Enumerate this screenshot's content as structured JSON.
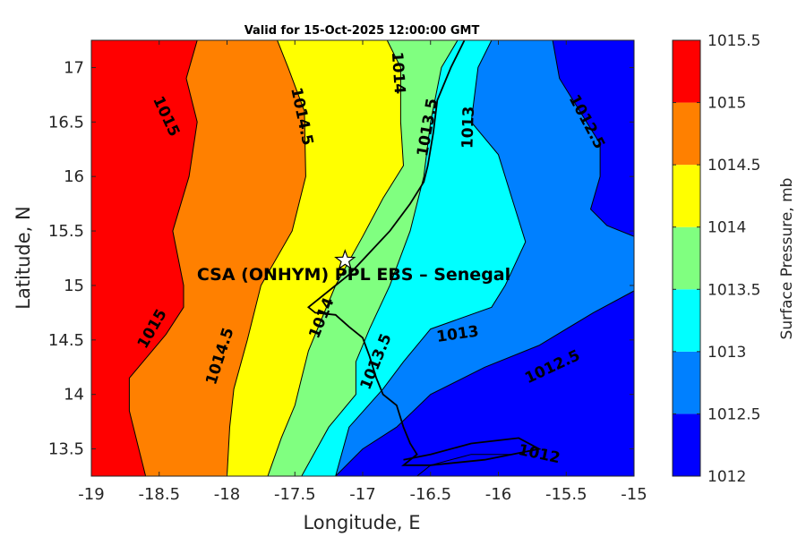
{
  "chart_data": {
    "type": "contour",
    "title": "Valid for 15-Oct-2025 12:00:00 GMT",
    "xlabel": "Longitude, E",
    "ylabel": "Latitude, N",
    "xlim": [
      -19,
      -15
    ],
    "ylim": [
      13.25,
      17.25
    ],
    "xticks": [
      -19,
      -18.5,
      -18,
      -17.5,
      -17,
      -16.5,
      -16,
      -15.5,
      -15
    ],
    "yticks": [
      13.5,
      14,
      14.5,
      15,
      15.5,
      16,
      16.5,
      17
    ],
    "xtick_labels": [
      "-19",
      "-18.5",
      "-18",
      "-17.5",
      "-17",
      "-16.5",
      "-16",
      "-15.5",
      "-15"
    ],
    "ytick_labels": [
      "13.5",
      "14",
      "14.5",
      "15",
      "15.5",
      "16",
      "16.5",
      "17"
    ],
    "levels": [
      1012,
      1012.5,
      1013,
      1013.5,
      1014,
      1014.5,
      1015,
      1015.5
    ],
    "level_labels": [
      "1012",
      "1012.5",
      "1013",
      "1013.5",
      "1014",
      "1014.5",
      "1015",
      "1015.5"
    ],
    "band_colors": [
      "#0000ff",
      "#0080ff",
      "#00ffff",
      "#80ff80",
      "#ffff00",
      "#ff8000",
      "#ff0000"
    ],
    "colorbar_label": "Surface Pressure, mb",
    "isolines": [
      {
        "level": 1015,
        "pts": [
          [
            -18.22,
            17.25
          ],
          [
            -18.3,
            16.9
          ],
          [
            -18.22,
            16.5
          ],
          [
            -18.28,
            16.0
          ],
          [
            -18.4,
            15.5
          ],
          [
            -18.32,
            15.0
          ],
          [
            -18.32,
            14.8
          ],
          [
            -18.45,
            14.55
          ],
          [
            -18.72,
            14.15
          ],
          [
            -18.72,
            13.85
          ],
          [
            -18.65,
            13.5
          ],
          [
            -18.6,
            13.25
          ]
        ]
      },
      {
        "level": 1014.5,
        "pts": [
          [
            -17.63,
            17.25
          ],
          [
            -17.55,
            17.0
          ],
          [
            -17.43,
            16.6
          ],
          [
            -17.42,
            16.0
          ],
          [
            -17.52,
            15.5
          ],
          [
            -17.75,
            15.0
          ],
          [
            -17.85,
            14.5
          ],
          [
            -17.95,
            14.05
          ],
          [
            -17.98,
            13.7
          ],
          [
            -18.0,
            13.25
          ]
        ]
      },
      {
        "level": 1014,
        "pts": [
          [
            -16.82,
            17.25
          ],
          [
            -16.72,
            17.0
          ],
          [
            -16.72,
            16.5
          ],
          [
            -16.7,
            16.1
          ],
          [
            -16.85,
            15.8
          ],
          [
            -17.0,
            15.45
          ],
          [
            -17.2,
            15.0
          ],
          [
            -17.3,
            14.7
          ],
          [
            -17.4,
            14.4
          ],
          [
            -17.45,
            14.15
          ],
          [
            -17.5,
            13.9
          ],
          [
            -17.6,
            13.6
          ],
          [
            -17.7,
            13.25
          ]
        ]
      },
      {
        "level": 1013.5,
        "pts": [
          [
            -16.3,
            17.25
          ],
          [
            -16.42,
            17.0
          ],
          [
            -16.5,
            16.5
          ],
          [
            -16.55,
            16.0
          ],
          [
            -16.65,
            15.5
          ],
          [
            -16.8,
            15.0
          ],
          [
            -16.95,
            14.6
          ],
          [
            -17.05,
            14.3
          ],
          [
            -17.05,
            14.0
          ],
          [
            -17.25,
            13.7
          ],
          [
            -17.45,
            13.25
          ]
        ]
      },
      {
        "level": 1013,
        "pts": [
          [
            -16.05,
            17.25
          ],
          [
            -16.15,
            17.0
          ],
          [
            -16.2,
            16.5
          ],
          [
            -16.0,
            16.2
          ],
          [
            -15.9,
            15.8
          ],
          [
            -15.8,
            15.4
          ],
          [
            -15.95,
            15.0
          ],
          [
            -16.05,
            14.8
          ],
          [
            -16.5,
            14.6
          ],
          [
            -16.7,
            14.3
          ],
          [
            -16.85,
            14.05
          ],
          [
            -17.1,
            13.7
          ],
          [
            -17.2,
            13.25
          ]
        ]
      },
      {
        "level": 1012.5,
        "pts": [
          [
            -15.6,
            17.25
          ],
          [
            -15.55,
            16.9
          ],
          [
            -15.4,
            16.6
          ],
          [
            -15.25,
            16.3
          ],
          [
            -15.25,
            16.0
          ],
          [
            -15.32,
            15.7
          ],
          [
            -15.2,
            15.55
          ],
          [
            -15.0,
            15.45
          ]
        ]
      },
      {
        "level": 1012.5,
        "pts": [
          [
            -15.0,
            14.95
          ],
          [
            -15.3,
            14.75
          ],
          [
            -15.7,
            14.45
          ],
          [
            -16.1,
            14.25
          ],
          [
            -16.5,
            14.0
          ],
          [
            -16.75,
            13.7
          ],
          [
            -17.0,
            13.5
          ],
          [
            -17.2,
            13.25
          ]
        ]
      },
      {
        "level": 1012,
        "pts": [
          [
            -15.7,
            13.5
          ],
          [
            -15.9,
            13.45
          ],
          [
            -16.2,
            13.45
          ],
          [
            -16.5,
            13.35
          ],
          [
            -16.6,
            13.25
          ]
        ]
      }
    ],
    "contour_labels": [
      {
        "text": "1015",
        "x": -18.45,
        "y": 16.55,
        "rotate": 65
      },
      {
        "text": "1014.5",
        "x": -17.45,
        "y": 16.55,
        "rotate": 78
      },
      {
        "text": "1014",
        "x": -16.74,
        "y": 16.95,
        "rotate": 86
      },
      {
        "text": "1013.5",
        "x": -16.52,
        "y": 16.45,
        "rotate": -80
      },
      {
        "text": "1013",
        "x": -16.22,
        "y": 16.45,
        "rotate": -88
      },
      {
        "text": "1012.5",
        "x": -15.35,
        "y": 16.5,
        "rotate": 62
      },
      {
        "text": "1015",
        "x": -18.55,
        "y": 14.6,
        "rotate": -60
      },
      {
        "text": "1014.5",
        "x": -18.05,
        "y": 14.35,
        "rotate": -72
      },
      {
        "text": "1014",
        "x": -17.3,
        "y": 14.7,
        "rotate": -68
      },
      {
        "text": "1013.5",
        "x": -16.9,
        "y": 14.3,
        "rotate": -68
      },
      {
        "text": "1013",
        "x": -16.3,
        "y": 14.55,
        "rotate": -8
      },
      {
        "text": "1012.5",
        "x": -15.6,
        "y": 14.25,
        "rotate": -25
      },
      {
        "text": "1012",
        "x": -15.7,
        "y": 13.45,
        "rotate": 12
      }
    ],
    "coastline": [
      [
        -16.25,
        17.25
      ],
      [
        -16.35,
        17.0
      ],
      [
        -16.45,
        16.7
      ],
      [
        -16.48,
        16.4
      ],
      [
        -16.52,
        16.1
      ],
      [
        -16.55,
        15.95
      ],
      [
        -16.65,
        15.75
      ],
      [
        -16.8,
        15.5
      ],
      [
        -16.95,
        15.3
      ],
      [
        -17.1,
        15.1
      ],
      [
        -17.25,
        14.95
      ],
      [
        -17.4,
        14.8
      ],
      [
        -17.35,
        14.75
      ],
      [
        -17.2,
        14.73
      ],
      [
        -17.1,
        14.62
      ],
      [
        -17.0,
        14.52
      ],
      [
        -16.95,
        14.35
      ],
      [
        -16.9,
        14.15
      ],
      [
        -16.85,
        14.0
      ],
      [
        -16.75,
        13.9
      ],
      [
        -16.7,
        13.7
      ],
      [
        -16.65,
        13.55
      ],
      [
        -16.6,
        13.45
      ],
      [
        -16.7,
        13.35
      ],
      [
        -16.5,
        13.35
      ],
      [
        -16.1,
        13.4
      ],
      [
        -15.9,
        13.45
      ],
      [
        -15.7,
        13.5
      ],
      [
        -15.85,
        13.6
      ],
      [
        -16.2,
        13.55
      ],
      [
        -16.5,
        13.45
      ],
      [
        -16.7,
        13.4
      ]
    ],
    "site": {
      "name": "CSA (ONHYM) PPL EBS  – Senegal",
      "x": -17.13,
      "y": 15.23
    }
  }
}
